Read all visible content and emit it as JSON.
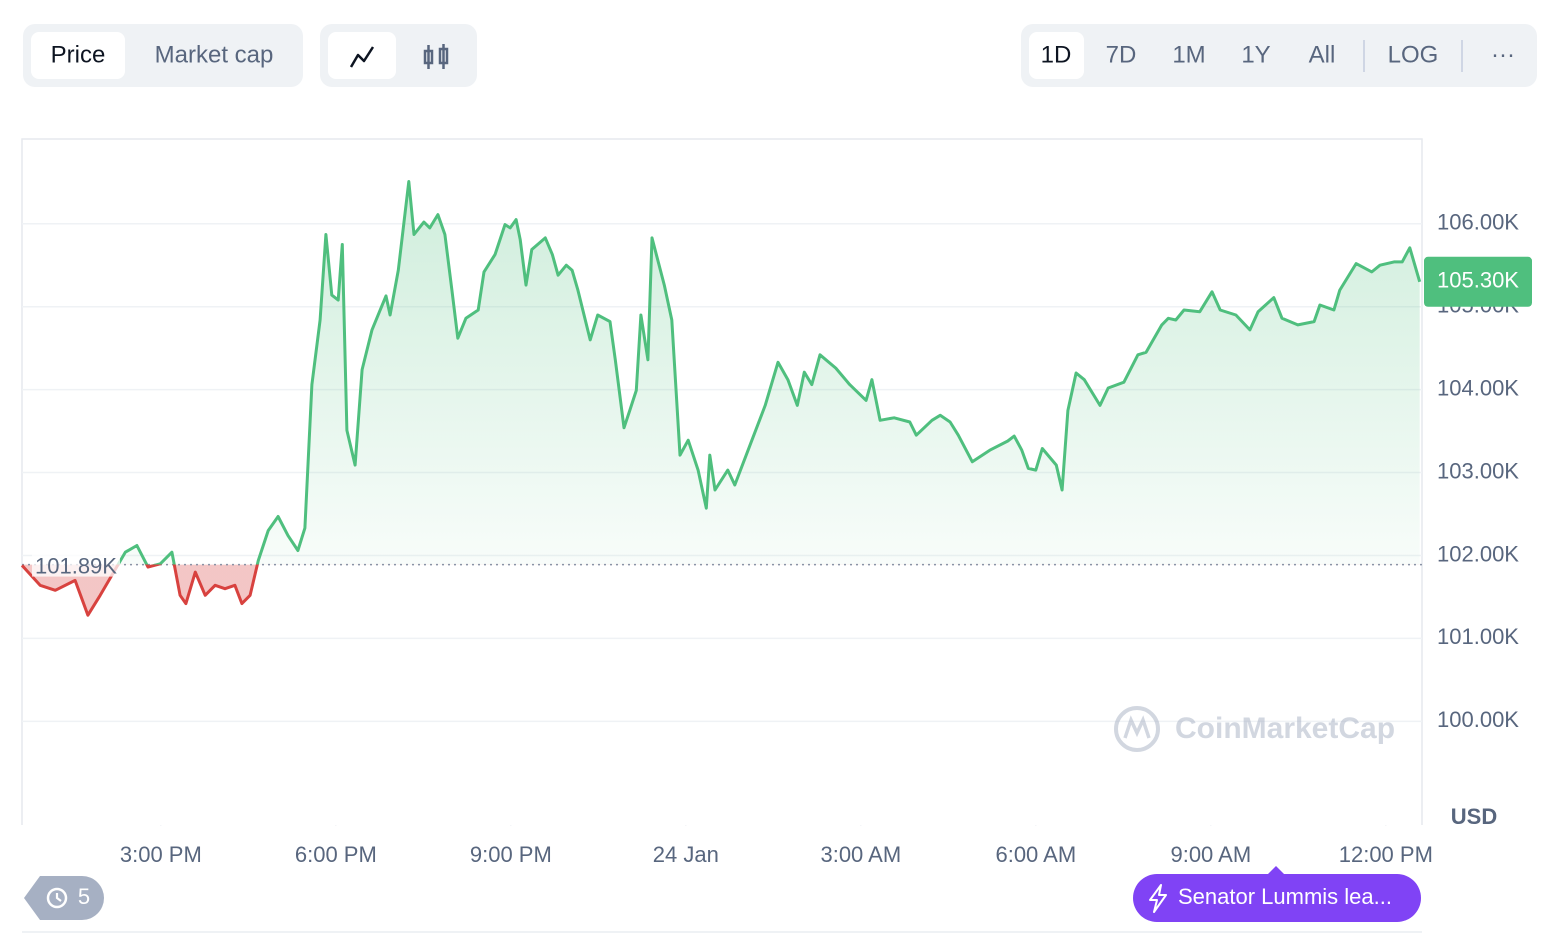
{
  "toolbar": {
    "tabs": [
      "Price",
      "Market cap"
    ],
    "ranges": [
      "1D",
      "7D",
      "1M",
      "1Y",
      "All"
    ],
    "log": "LOG",
    "more": "···"
  },
  "chart_data": {
    "type": "line",
    "x": [
      12.62,
      12.93,
      13.19,
      13.53,
      13.75,
      13.96,
      14.16,
      14.39,
      14.59,
      14.78,
      14.99,
      15.19,
      15.33,
      15.43,
      15.59,
      15.76,
      15.93,
      16.1,
      16.27,
      16.39,
      16.53,
      16.67,
      16.84,
      17.01,
      17.18,
      17.35,
      17.47,
      17.59,
      17.73,
      17.83,
      17.93,
      18.04,
      18.11,
      18.19,
      18.33,
      18.45,
      18.62,
      18.86,
      18.93,
      19.07,
      19.25,
      19.34,
      19.51,
      19.61,
      19.75,
      19.87,
      19.99,
      20.09,
      20.23,
      20.44,
      20.54,
      20.73,
      20.9,
      20.99,
      21.09,
      21.16,
      21.26,
      21.36,
      21.59,
      21.71,
      21.81,
      21.95,
      22.05,
      22.15,
      22.36,
      22.49,
      22.7,
      22.79,
      22.94,
      23.04,
      23.15,
      23.23,
      23.35,
      23.42,
      23.63,
      23.76,
      23.9,
      24.04,
      24.21,
      24.35,
      24.41,
      24.5,
      24.72,
      24.84,
      25.1,
      25.36,
      25.58,
      25.75,
      25.91,
      26.03,
      26.16,
      26.3,
      26.57,
      26.81,
      27.09,
      27.19,
      27.33,
      27.57,
      27.84,
      27.95,
      28.22,
      28.36,
      28.53,
      28.67,
      28.91,
      29.21,
      29.52,
      29.63,
      29.76,
      29.87,
      30.0,
      30.11,
      30.35,
      30.45,
      30.55,
      30.69,
      30.83,
      31.1,
      31.24,
      31.51,
      31.75,
      31.89,
      32.16,
      32.27,
      32.4,
      32.54,
      32.81,
      33.02,
      33.16,
      33.43,
      33.67,
      33.81,
      34.08,
      34.22,
      34.49,
      34.77,
      34.87,
      35.11,
      35.21,
      35.49,
      35.76,
      35.9,
      36.14,
      36.28,
      36.41,
      36.58
    ],
    "values": [
      101880,
      101640,
      101580,
      101700,
      101280,
      101520,
      101760,
      102040,
      102120,
      101860,
      101900,
      102040,
      101520,
      101420,
      101800,
      101520,
      101640,
      101600,
      101640,
      101420,
      101520,
      101940,
      102300,
      102470,
      102240,
      102060,
      102330,
      104060,
      104840,
      105870,
      105140,
      105080,
      105750,
      103510,
      103090,
      104240,
      104720,
      105130,
      104900,
      105440,
      106510,
      105870,
      106020,
      105950,
      106110,
      105870,
      105200,
      104620,
      104860,
      104960,
      105420,
      105630,
      105990,
      105950,
      106050,
      105810,
      105260,
      105690,
      105830,
      105630,
      105380,
      105500,
      105440,
      105200,
      104600,
      104900,
      104820,
      104360,
      103540,
      103750,
      103990,
      104900,
      104360,
      105830,
      105260,
      104840,
      103210,
      103390,
      103030,
      102570,
      103210,
      102790,
      103030,
      102850,
      103330,
      103810,
      104330,
      104120,
      103810,
      104210,
      104060,
      104420,
      104260,
      104060,
      103870,
      104120,
      103630,
      103660,
      103610,
      103450,
      103630,
      103690,
      103610,
      103450,
      103130,
      103270,
      103380,
      103440,
      103270,
      103050,
      103030,
      103290,
      103090,
      102790,
      103750,
      104200,
      104120,
      103810,
      104020,
      104090,
      104420,
      104450,
      104780,
      104860,
      104840,
      104960,
      104940,
      105180,
      104960,
      104900,
      104720,
      104940,
      105110,
      104860,
      104780,
      104820,
      105020,
      104960,
      105200,
      105520,
      105420,
      105500,
      105540,
      105540,
      105710,
      105300
    ],
    "color_up": "#4fbf7e",
    "color_down": "#d8423f",
    "baseline": {
      "value": 101890,
      "label": "101.89K"
    },
    "last_price": {
      "value": 105300,
      "label": "105.30K"
    },
    "xlim": [
      12.62,
      36.62
    ],
    "xticks": [
      {
        "value": 15,
        "label": "3:00 PM"
      },
      {
        "value": 18,
        "label": "6:00 PM"
      },
      {
        "value": 21,
        "label": "9:00 PM"
      },
      {
        "value": 24,
        "label": "24 Jan"
      },
      {
        "value": 27,
        "label": "3:00 AM"
      },
      {
        "value": 30,
        "label": "6:00 AM"
      },
      {
        "value": 33,
        "label": "9:00 AM"
      },
      {
        "value": 36,
        "label": "12:00 PM"
      }
    ],
    "ylim": [
      98750,
      107010
    ],
    "yticks": [
      {
        "value": 100000,
        "label": "100.00K"
      },
      {
        "value": 101000,
        "label": "101.00K"
      },
      {
        "value": 102000,
        "label": "102.00K"
      },
      {
        "value": 103000,
        "label": "103.00K"
      },
      {
        "value": 104000,
        "label": "104.00K"
      },
      {
        "value": 105000,
        "label": "105.00K"
      },
      {
        "value": 106000,
        "label": "106.00K"
      }
    ],
    "grid": true,
    "y_unit": "USD",
    "watermark": "CoinMarketCap"
  },
  "footer": {
    "history_count": 5,
    "news": "Senator Lummis lea..."
  }
}
